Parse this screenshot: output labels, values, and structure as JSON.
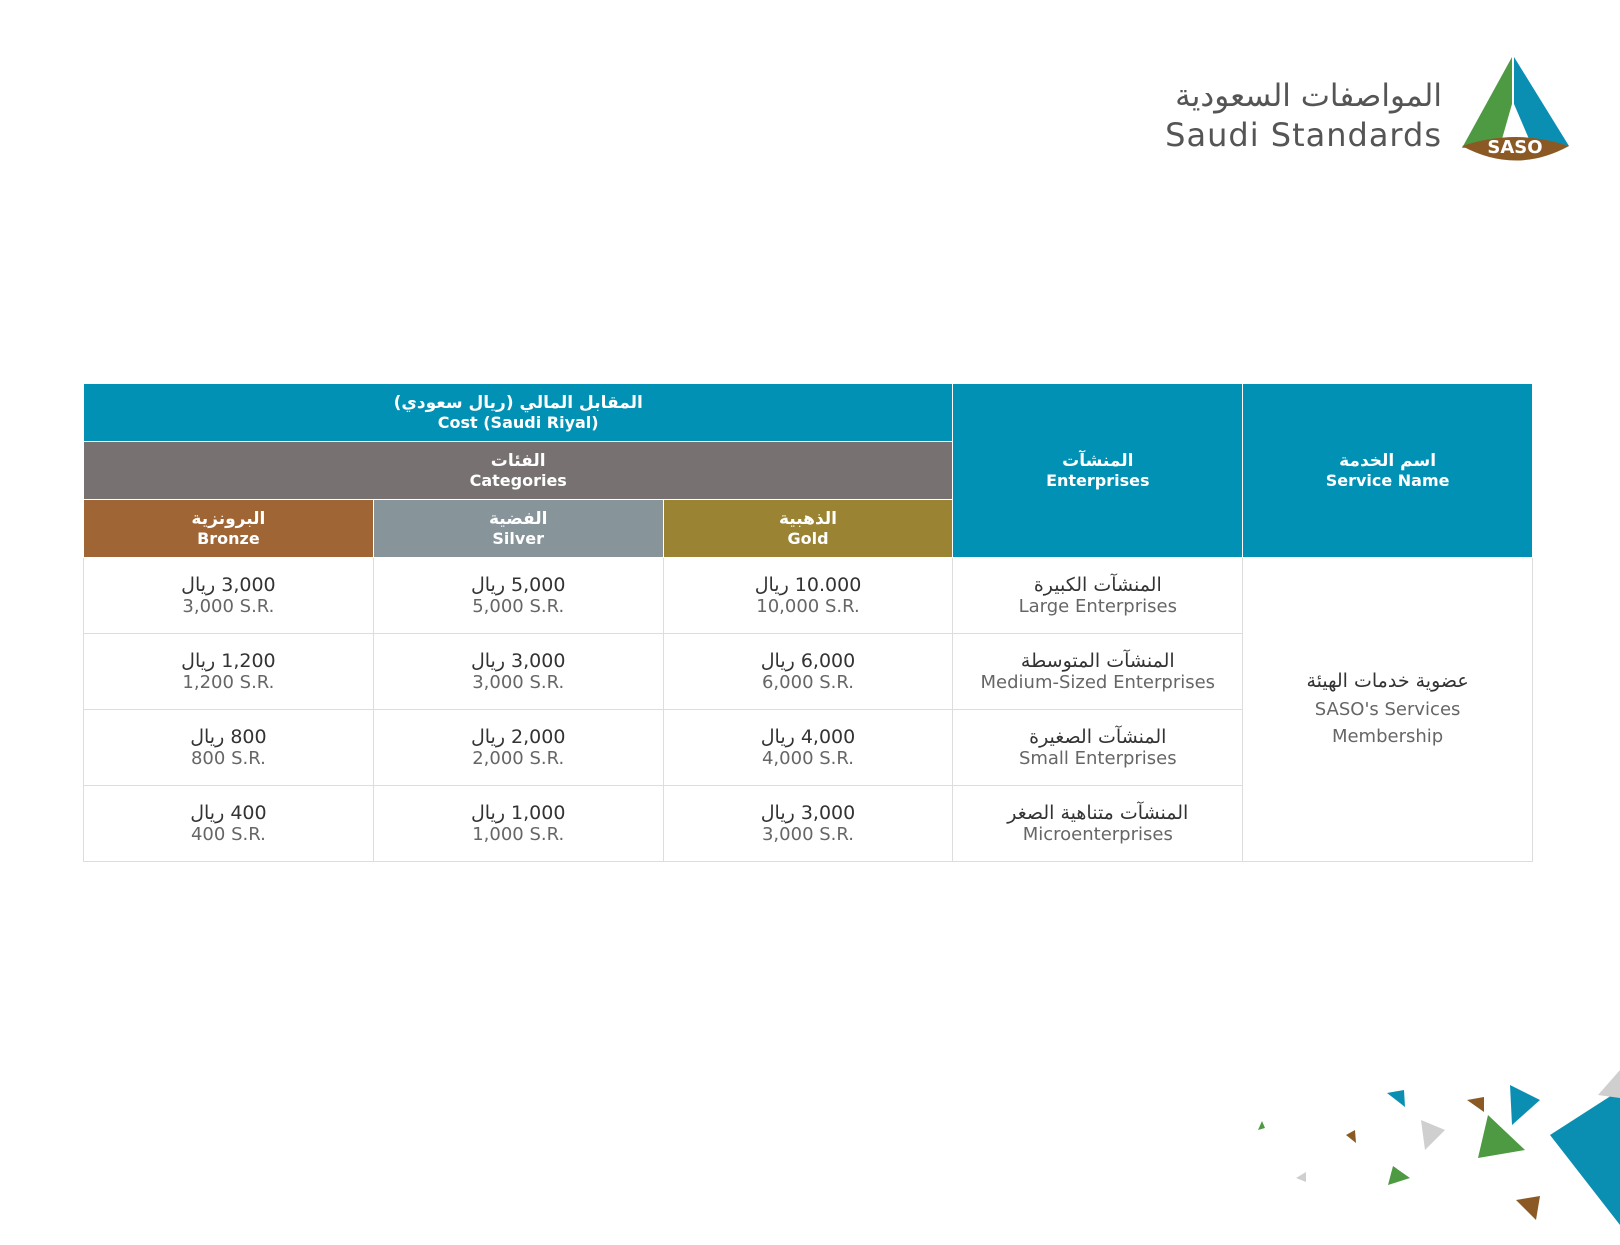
{
  "logo": {
    "arabic": "المواصفات السعودية",
    "english": "Saudi Standards",
    "badge": "SASO"
  },
  "table": {
    "header": {
      "cost": {
        "ar": "المقابل المالي (ريال سعودي)",
        "en": "Cost (Saudi Riyal)"
      },
      "categories": {
        "ar": "الفئات",
        "en": "Categories"
      },
      "enterprises": {
        "ar": "المنشآت",
        "en": "Enterprises"
      },
      "service_name": {
        "ar": "اسم الخدمة",
        "en": "Service Name"
      },
      "tiers": [
        {
          "ar": "البرونزية",
          "en": "Bronze"
        },
        {
          "ar": "الفضية",
          "en": "Silver"
        },
        {
          "ar": "الذهبية",
          "en": "Gold"
        }
      ]
    },
    "service": {
      "ar": "عضوية خدمات الهيئة",
      "en": "SASO's Services Membership"
    },
    "rows": [
      {
        "prices": [
          {
            "ar": "3,000 ريال",
            "en": "3,000 S.R."
          },
          {
            "ar": "5,000 ريال",
            "en": "5,000 S.R."
          },
          {
            "ar": "10.000 ريال",
            "en": "10,000 S.R."
          }
        ],
        "enterprise": {
          "ar": "المنشآت الكبيرة",
          "en": "Large Enterprises"
        }
      },
      {
        "prices": [
          {
            "ar": "1,200 ريال",
            "en": "1,200 S.R."
          },
          {
            "ar": "3,000 ريال",
            "en": "3,000 S.R."
          },
          {
            "ar": "6,000 ريال",
            "en": "6,000 S.R."
          }
        ],
        "enterprise": {
          "ar": "المنشآت المتوسطة",
          "en": "Medium-Sized Enterprises"
        }
      },
      {
        "prices": [
          {
            "ar": "800 ريال",
            "en": "800 S.R."
          },
          {
            "ar": "2,000 ريال",
            "en": "2,000 S.R."
          },
          {
            "ar": "4,000 ريال",
            "en": "4,000 S.R."
          }
        ],
        "enterprise": {
          "ar": "المنشآت الصغيرة",
          "en": "Small Enterprises"
        }
      },
      {
        "prices": [
          {
            "ar": "400 ريال",
            "en": "400 S.R."
          },
          {
            "ar": "1,000 ريال",
            "en": "1,000 S.R."
          },
          {
            "ar": "3,000 ريال",
            "en": "3,000 S.R."
          }
        ],
        "enterprise": {
          "ar": "المنشآت متناهية الصغر",
          "en": "Microenterprises"
        }
      }
    ]
  }
}
